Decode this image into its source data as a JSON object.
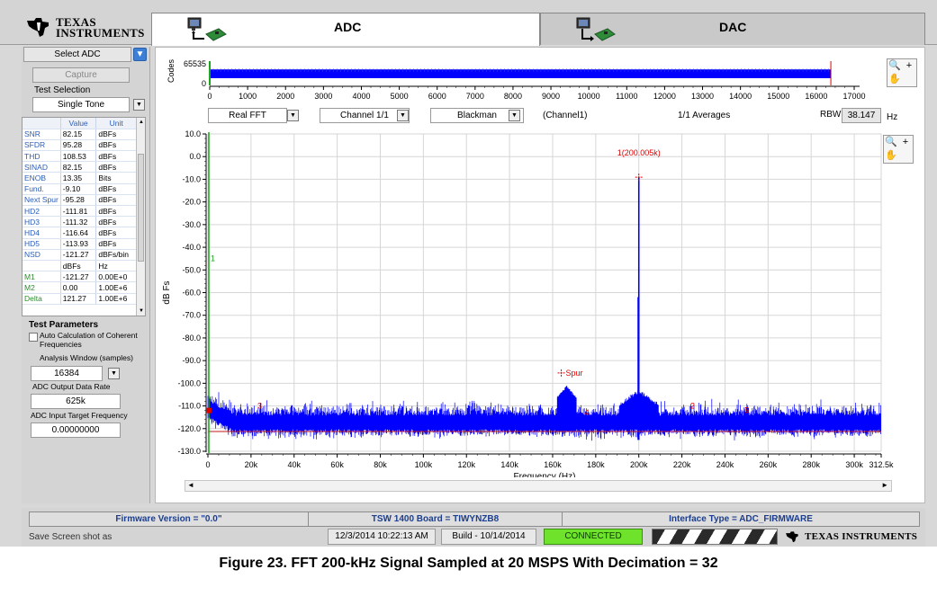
{
  "brand": {
    "logo_line1": "Texas",
    "logo_line2": "Instruments"
  },
  "tabs": [
    {
      "label": "ADC",
      "selected": true
    },
    {
      "label": "DAC",
      "selected": false
    }
  ],
  "left_panel": {
    "select_adc": "Select ADC",
    "capture": "Capture",
    "test_selection_label": "Test Selection",
    "test_selection_value": "Single Tone",
    "results_headers": [
      "",
      "Value",
      "Unit"
    ],
    "results": [
      {
        "name": "SNR",
        "value": "82.15",
        "unit": "dBFs"
      },
      {
        "name": "SFDR",
        "value": "95.28",
        "unit": "dBFs"
      },
      {
        "name": "THD",
        "value": "108.53",
        "unit": "dBFs"
      },
      {
        "name": "SINAD",
        "value": "82.15",
        "unit": "dBFs"
      },
      {
        "name": "ENOB",
        "value": "13.35",
        "unit": "Bits"
      },
      {
        "name": "Fund.",
        "value": "-9.10",
        "unit": "dBFs"
      },
      {
        "name": "Next Spur",
        "value": "-95.28",
        "unit": "dBFs"
      },
      {
        "name": "HD2",
        "value": "-111.81",
        "unit": "dBFs"
      },
      {
        "name": "HD3",
        "value": "-111.32",
        "unit": "dBFs"
      },
      {
        "name": "HD4",
        "value": "-116.64",
        "unit": "dBFs"
      },
      {
        "name": "HD5",
        "value": "-113.93",
        "unit": "dBFs"
      },
      {
        "name": "NSD",
        "value": "-121.27",
        "unit": "dBFs/bin"
      },
      {
        "name": "",
        "value": "dBFs",
        "unit": "Hz"
      },
      {
        "name": "M1",
        "value": "-121.27",
        "unit": "0.00E+0"
      },
      {
        "name": "M2",
        "value": "0.00",
        "unit": "1.00E+6"
      },
      {
        "name": "Delta",
        "value": "121.27",
        "unit": "1.00E+6"
      }
    ],
    "test_parameters_title": "Test Parameters",
    "auto_calc_label": "Auto Calculation of Coherent Frequencies",
    "auto_calc_checked": false,
    "analysis_window_label": "Analysis Window (samples)",
    "analysis_window_value": "16384",
    "output_data_rate_label": "ADC Output Data Rate",
    "output_data_rate_value": "625k",
    "input_target_freq_label": "ADC Input Target Frequency",
    "input_target_freq_value": "0.00000000"
  },
  "controls": {
    "fft_mode": "Real FFT",
    "channel": "Channel 1/1",
    "window": "Blackman",
    "channel_text": "(Channel1)",
    "averages_text": "1/1 Averages",
    "rbw_label": "RBW",
    "rbw_value": "38.147",
    "rbw_unit": "Hz"
  },
  "chart_data": [
    {
      "type": "line",
      "name": "time-domain codes",
      "ylabel": "Codes",
      "yticks": [
        "65535",
        "0"
      ],
      "xticks": [
        0,
        1000,
        2000,
        3000,
        4000,
        5000,
        6000,
        7000,
        8000,
        9000,
        10000,
        11000,
        12000,
        13000,
        14000,
        15000,
        16000,
        17000
      ],
      "xlim": [
        0,
        17000
      ],
      "ylim": [
        0,
        65535
      ],
      "samples": 16384,
      "band_y": [
        18000,
        47000
      ],
      "marker_x": 16384,
      "color": "#0000ff",
      "marker_color": "#e00000"
    },
    {
      "type": "line",
      "name": "FFT spectrum",
      "xlabel": "Frequency (Hz)",
      "ylabel": "dB Fs",
      "xlim": [
        0,
        312500
      ],
      "ylim": [
        -130,
        10
      ],
      "xticks": [
        0,
        20000,
        40000,
        60000,
        80000,
        100000,
        120000,
        140000,
        160000,
        180000,
        200000,
        220000,
        240000,
        260000,
        280000,
        300000,
        312500
      ],
      "xtick_labels": [
        "0",
        "20k",
        "40k",
        "60k",
        "80k",
        "100k",
        "120k",
        "140k",
        "160k",
        "180k",
        "200k",
        "220k",
        "240k",
        "260k",
        "280k",
        "300k",
        "312.5k"
      ],
      "yticks": [
        10,
        0,
        -10,
        -20,
        -30,
        -40,
        -50,
        -60,
        -70,
        -80,
        -90,
        -100,
        -110,
        -120,
        -130
      ],
      "ytick_labels": [
        "10.0",
        "0.0",
        "-10.0",
        "-20.0",
        "-30.0",
        "-40.0",
        "-50.0",
        "-60.0",
        "-70.0",
        "-80.0",
        "-90.0",
        "-100.0",
        "-110.0",
        "-120.0",
        "-130.0"
      ],
      "grid": true,
      "noise_floor_db": -121.27,
      "fundamental": {
        "freq": 200005,
        "db": -9.1,
        "label": "1(200.005k)"
      },
      "spur": {
        "freq": 166500,
        "db": -101,
        "label": "Spur"
      },
      "harmonic_markers": [
        {
          "label": "3",
          "freq": 24000,
          "db": -110
        },
        {
          "label": "4",
          "freq": 176000,
          "db": -113
        },
        {
          "label": "2",
          "freq": 225000,
          "db": -110
        },
        {
          "label": "5",
          "freq": 250000,
          "db": -112
        }
      ],
      "marker_line_label": "1",
      "color": "#0000ff",
      "label_color": "#e00000"
    }
  ],
  "status": {
    "firmware": "Firmware Version = \"0.0\"",
    "board": "TSW 1400 Board = TIWYNZB8",
    "interface": "Interface Type = ADC_FIRMWARE",
    "save_screenshot": "Save Screen shot as",
    "datetime": "12/3/2014 10:22:13 AM",
    "build": "Build - 10/14/2014",
    "connection": "CONNECTED",
    "brand_text": "Texas Instruments"
  },
  "caption": "Figure 23. FFT 200-kHz Signal Sampled at 20 MSPS With Decimation = 32"
}
